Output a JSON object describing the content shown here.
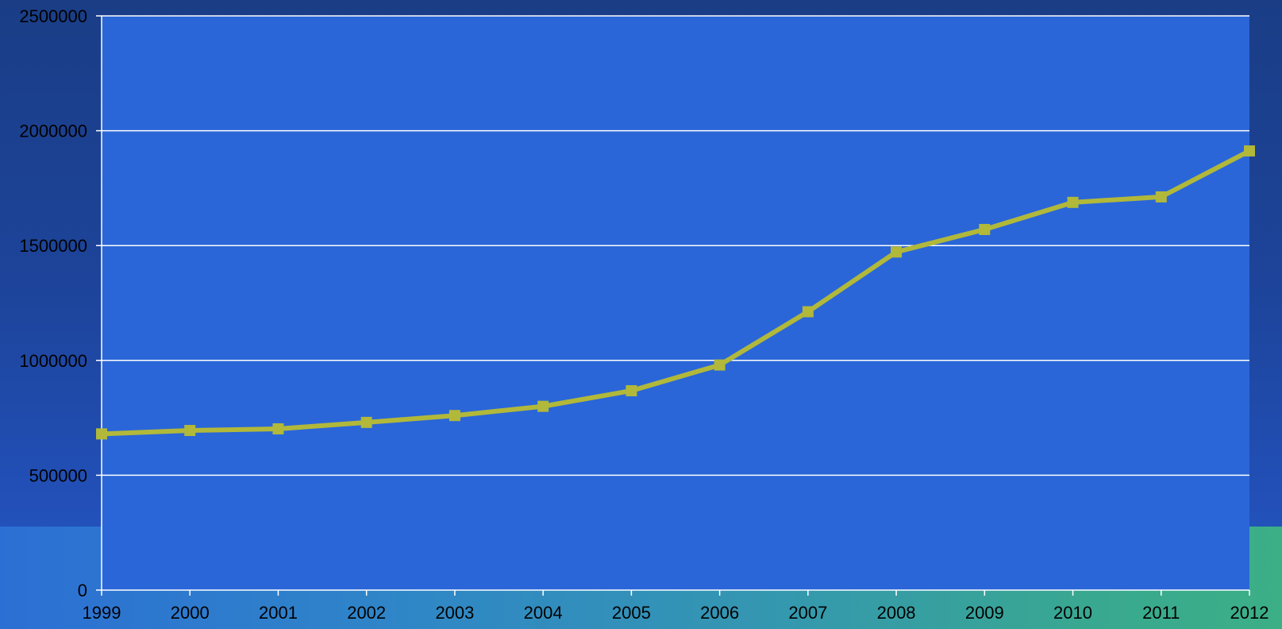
{
  "colors": {
    "plot_background": "#2a66d8",
    "grid_line": "#ffffff",
    "axis_line": "#ffffff",
    "series_line": "#b1b83a",
    "tick_text": "#000000"
  },
  "chart_data": {
    "type": "line",
    "title": "",
    "xlabel": "",
    "ylabel": "",
    "x": [
      "1999",
      "2000",
      "2001",
      "2002",
      "2003",
      "2004",
      "2005",
      "2006",
      "2007",
      "2008",
      "2009",
      "2010",
      "2011",
      "2012"
    ],
    "series": [
      {
        "values": [
          680000,
          695000,
          702000,
          730000,
          760000,
          800000,
          868000,
          980000,
          1212000,
          1472000,
          1570000,
          1688000,
          1712000,
          1912000
        ],
        "marker": "square"
      }
    ],
    "ylim": [
      0,
      2500000
    ],
    "yticks": [
      "0",
      "500000",
      "1000000",
      "1500000",
      "2000000",
      "2500000"
    ],
    "grid": "horizontal",
    "legend": "none"
  }
}
